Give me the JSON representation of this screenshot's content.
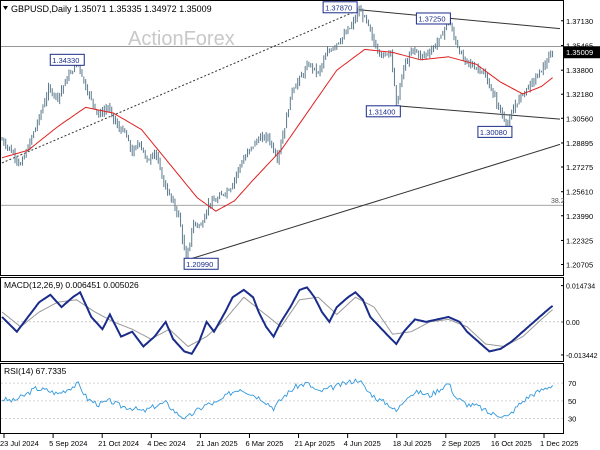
{
  "header": {
    "title": "GBPUSD,Daily  1.35071 1.35335 1.34972 1.35009",
    "watermark": "ActionForex"
  },
  "colors": {
    "price": "#5b7a8c",
    "ma": "#e02020",
    "macd": "#1a2c8a",
    "signal": "#999999",
    "rsi": "#3399dd",
    "axis": "#000000",
    "label_fill": "#ffffff",
    "label_border": "#1a2c8a",
    "current_box": "#000000"
  },
  "chart_data": [
    {
      "type": "line",
      "name": "price-panel",
      "y_ticks": [
        1.3713,
        1.35465,
        1.338,
        1.3218,
        1.3056,
        1.28895,
        1.27275,
        1.2561,
        1.2399,
        1.22325,
        1.20705
      ],
      "ylim": [
        1.202,
        1.3826
      ],
      "current_price": "1.35009",
      "x_ticks": [
        "23 Jul 2024",
        "5 Sep 2024",
        "21 Oct 2024",
        "4 Dec 2024",
        "21 Jan 2025",
        "6 Mar 2025",
        "21 Apr 2025",
        "4 Jun 2025",
        "18 Jul 2025",
        "2 Sep 2025",
        "16 Oct 2025",
        "1 Dec 2025"
      ],
      "price_anchors": [
        [
          0,
          1.291
        ],
        [
          6,
          1.282
        ],
        [
          10,
          1.274
        ],
        [
          14,
          1.286
        ],
        [
          20,
          1.306
        ],
        [
          25,
          1.325
        ],
        [
          30,
          1.32
        ],
        [
          36,
          1.335
        ],
        [
          41,
          1.3433
        ],
        [
          44,
          1.33
        ],
        [
          48,
          1.318
        ],
        [
          52,
          1.308
        ],
        [
          57,
          1.313
        ],
        [
          62,
          1.3
        ],
        [
          66,
          1.296
        ],
        [
          70,
          1.282
        ],
        [
          74,
          1.29
        ],
        [
          78,
          1.276
        ],
        [
          82,
          1.284
        ],
        [
          87,
          1.262
        ],
        [
          91,
          1.251
        ],
        [
          95,
          1.24
        ],
        [
          99,
          1.2099
        ],
        [
          103,
          1.235
        ],
        [
          107,
          1.233
        ],
        [
          111,
          1.248
        ],
        [
          115,
          1.25
        ],
        [
          119,
          1.255
        ],
        [
          123,
          1.259
        ],
        [
          128,
          1.274
        ],
        [
          133,
          1.284
        ],
        [
          138,
          1.292
        ],
        [
          143,
          1.293
        ],
        [
          148,
          1.279
        ],
        [
          152,
          1.3
        ],
        [
          156,
          1.325
        ],
        [
          160,
          1.332
        ],
        [
          165,
          1.342
        ],
        [
          170,
          1.336
        ],
        [
          175,
          1.35
        ],
        [
          179,
          1.355
        ],
        [
          183,
          1.36
        ],
        [
          188,
          1.368
        ],
        [
          192,
          1.3787
        ],
        [
          196,
          1.371
        ],
        [
          200,
          1.356
        ],
        [
          205,
          1.347
        ],
        [
          209,
          1.352
        ],
        [
          212,
          1.314
        ],
        [
          216,
          1.34
        ],
        [
          221,
          1.352
        ],
        [
          226,
          1.347
        ],
        [
          231,
          1.352
        ],
        [
          236,
          1.36
        ],
        [
          240,
          1.3725
        ],
        [
          243,
          1.36
        ],
        [
          248,
          1.345
        ],
        [
          253,
          1.341
        ],
        [
          258,
          1.338
        ],
        [
          263,
          1.325
        ],
        [
          268,
          1.31
        ],
        [
          272,
          1.3008
        ],
        [
          276,
          1.315
        ],
        [
          281,
          1.324
        ],
        [
          286,
          1.331
        ],
        [
          291,
          1.34
        ],
        [
          296,
          1.35
        ]
      ],
      "ma_anchors": [
        [
          0,
          1.279
        ],
        [
          14,
          1.284
        ],
        [
          30,
          1.3
        ],
        [
          45,
          1.313
        ],
        [
          60,
          1.309
        ],
        [
          75,
          1.298
        ],
        [
          90,
          1.275
        ],
        [
          105,
          1.252
        ],
        [
          115,
          1.243
        ],
        [
          125,
          1.25
        ],
        [
          135,
          1.264
        ],
        [
          150,
          1.284
        ],
        [
          165,
          1.311
        ],
        [
          180,
          1.338
        ],
        [
          195,
          1.352
        ],
        [
          210,
          1.35
        ],
        [
          225,
          1.345
        ],
        [
          240,
          1.347
        ],
        [
          255,
          1.342
        ],
        [
          268,
          1.33
        ],
        [
          280,
          1.322
        ],
        [
          290,
          1.327
        ],
        [
          296,
          1.333
        ]
      ],
      "labels": [
        {
          "text": "1.34330",
          "x": 41,
          "y": 1.3433
        },
        {
          "text": "1.20990",
          "x": 99,
          "y": 1.2099
        },
        {
          "text": "1.37870",
          "x": 192,
          "y": 1.3787
        },
        {
          "text": "1.37250",
          "x": 240,
          "y": 1.3725
        },
        {
          "text": "1.31400",
          "x": 212,
          "y": 1.314
        },
        {
          "text": "1.30080",
          "x": 272,
          "y": 1.3008
        }
      ],
      "fib_level": {
        "label": "38.2",
        "y": 1.247
      },
      "resistance_level": 1.354,
      "trendlines": [
        {
          "style": "dotted",
          "from": [
            0,
            1.2755
          ],
          "to": [
            192,
            1.3787
          ]
        },
        {
          "style": "solid",
          "from": [
            99,
            1.2099
          ],
          "to": [
            300,
            1.288
          ]
        },
        {
          "style": "solid",
          "from": [
            192,
            1.3787
          ],
          "to": [
            300,
            1.366
          ]
        },
        {
          "style": "solid",
          "from": [
            212,
            1.314
          ],
          "to": [
            300,
            1.305
          ]
        }
      ]
    },
    {
      "type": "line",
      "name": "macd-panel",
      "title": "MACD(12,26,9) 0.006451 0.005026",
      "y_ticks": [
        0.014734,
        0.0,
        -0.013442
      ],
      "ylim": [
        -0.0155,
        0.0162
      ],
      "macd_anchors": [
        [
          0,
          0.002
        ],
        [
          8,
          -0.004
        ],
        [
          14,
          0.002
        ],
        [
          20,
          0.008
        ],
        [
          26,
          0.011
        ],
        [
          32,
          0.006
        ],
        [
          38,
          0.01
        ],
        [
          42,
          0.012
        ],
        [
          48,
          0.002
        ],
        [
          54,
          -0.003
        ],
        [
          58,
          0.003
        ],
        [
          64,
          -0.006
        ],
        [
          70,
          -0.004
        ],
        [
          76,
          -0.01
        ],
        [
          82,
          -0.006
        ],
        [
          88,
          0.0
        ],
        [
          92,
          -0.007
        ],
        [
          98,
          -0.012
        ],
        [
          102,
          -0.013
        ],
        [
          106,
          -0.008
        ],
        [
          110,
          0.0
        ],
        [
          114,
          -0.004
        ],
        [
          120,
          0.004
        ],
        [
          124,
          0.01
        ],
        [
          130,
          0.013
        ],
        [
          135,
          0.01
        ],
        [
          138,
          0.004
        ],
        [
          142,
          -0.002
        ],
        [
          146,
          -0.006
        ],
        [
          150,
          0.0
        ],
        [
          155,
          0.006
        ],
        [
          160,
          0.013
        ],
        [
          164,
          0.014
        ],
        [
          168,
          0.01
        ],
        [
          172,
          0.004
        ],
        [
          176,
          0.0
        ],
        [
          180,
          0.006
        ],
        [
          186,
          0.01
        ],
        [
          190,
          0.012
        ],
        [
          194,
          0.009
        ],
        [
          198,
          0.002
        ],
        [
          203,
          -0.002
        ],
        [
          208,
          -0.006
        ],
        [
          212,
          -0.009
        ],
        [
          216,
          -0.004
        ],
        [
          222,
          0.001
        ],
        [
          228,
          0.0
        ],
        [
          234,
          0.001
        ],
        [
          240,
          0.002
        ],
        [
          246,
          0.0
        ],
        [
          250,
          -0.004
        ],
        [
          256,
          -0.008
        ],
        [
          262,
          -0.012
        ],
        [
          268,
          -0.011
        ],
        [
          274,
          -0.008
        ],
        [
          280,
          -0.004
        ],
        [
          286,
          0.0
        ],
        [
          292,
          0.004
        ],
        [
          296,
          0.0065
        ]
      ],
      "signal_anchors": [
        [
          0,
          0.004
        ],
        [
          10,
          -0.002
        ],
        [
          20,
          0.004
        ],
        [
          30,
          0.008
        ],
        [
          40,
          0.009
        ],
        [
          50,
          0.004
        ],
        [
          60,
          0.0
        ],
        [
          70,
          -0.003
        ],
        [
          80,
          -0.007
        ],
        [
          90,
          -0.003
        ],
        [
          100,
          -0.01
        ],
        [
          110,
          -0.006
        ],
        [
          120,
          0.001
        ],
        [
          130,
          0.01
        ],
        [
          140,
          0.004
        ],
        [
          150,
          -0.002
        ],
        [
          160,
          0.009
        ],
        [
          170,
          0.01
        ],
        [
          180,
          0.003
        ],
        [
          190,
          0.01
        ],
        [
          200,
          0.006
        ],
        [
          210,
          -0.005
        ],
        [
          220,
          -0.004
        ],
        [
          230,
          0.0
        ],
        [
          240,
          0.001
        ],
        [
          250,
          -0.002
        ],
        [
          260,
          -0.009
        ],
        [
          270,
          -0.01
        ],
        [
          280,
          -0.006
        ],
        [
          290,
          0.001
        ],
        [
          296,
          0.005
        ]
      ]
    },
    {
      "type": "line",
      "name": "rsi-panel",
      "title": "RSI(14) 67.7335",
      "y_ticks": [
        70,
        50,
        30
      ],
      "ylim": [
        15,
        87
      ],
      "rsi_anchors": [
        [
          0,
          52
        ],
        [
          6,
          50
        ],
        [
          12,
          56
        ],
        [
          18,
          64
        ],
        [
          24,
          62
        ],
        [
          30,
          58
        ],
        [
          36,
          64
        ],
        [
          41,
          69
        ],
        [
          46,
          52
        ],
        [
          52,
          46
        ],
        [
          58,
          50
        ],
        [
          64,
          44
        ],
        [
          70,
          42
        ],
        [
          76,
          38
        ],
        [
          82,
          44
        ],
        [
          88,
          48
        ],
        [
          94,
          36
        ],
        [
          99,
          30
        ],
        [
          104,
          38
        ],
        [
          110,
          46
        ],
        [
          116,
          48
        ],
        [
          122,
          58
        ],
        [
          128,
          64
        ],
        [
          134,
          58
        ],
        [
          140,
          52
        ],
        [
          146,
          42
        ],
        [
          152,
          56
        ],
        [
          158,
          66
        ],
        [
          164,
          70
        ],
        [
          170,
          60
        ],
        [
          176,
          64
        ],
        [
          182,
          68
        ],
        [
          188,
          72
        ],
        [
          192,
          74
        ],
        [
          196,
          62
        ],
        [
          202,
          52
        ],
        [
          208,
          46
        ],
        [
          212,
          38
        ],
        [
          218,
          56
        ],
        [
          224,
          60
        ],
        [
          230,
          56
        ],
        [
          236,
          64
        ],
        [
          240,
          70
        ],
        [
          244,
          54
        ],
        [
          250,
          46
        ],
        [
          256,
          44
        ],
        [
          262,
          36
        ],
        [
          268,
          34
        ],
        [
          272,
          32
        ],
        [
          278,
          46
        ],
        [
          284,
          56
        ],
        [
          290,
          62
        ],
        [
          296,
          68
        ]
      ]
    }
  ]
}
